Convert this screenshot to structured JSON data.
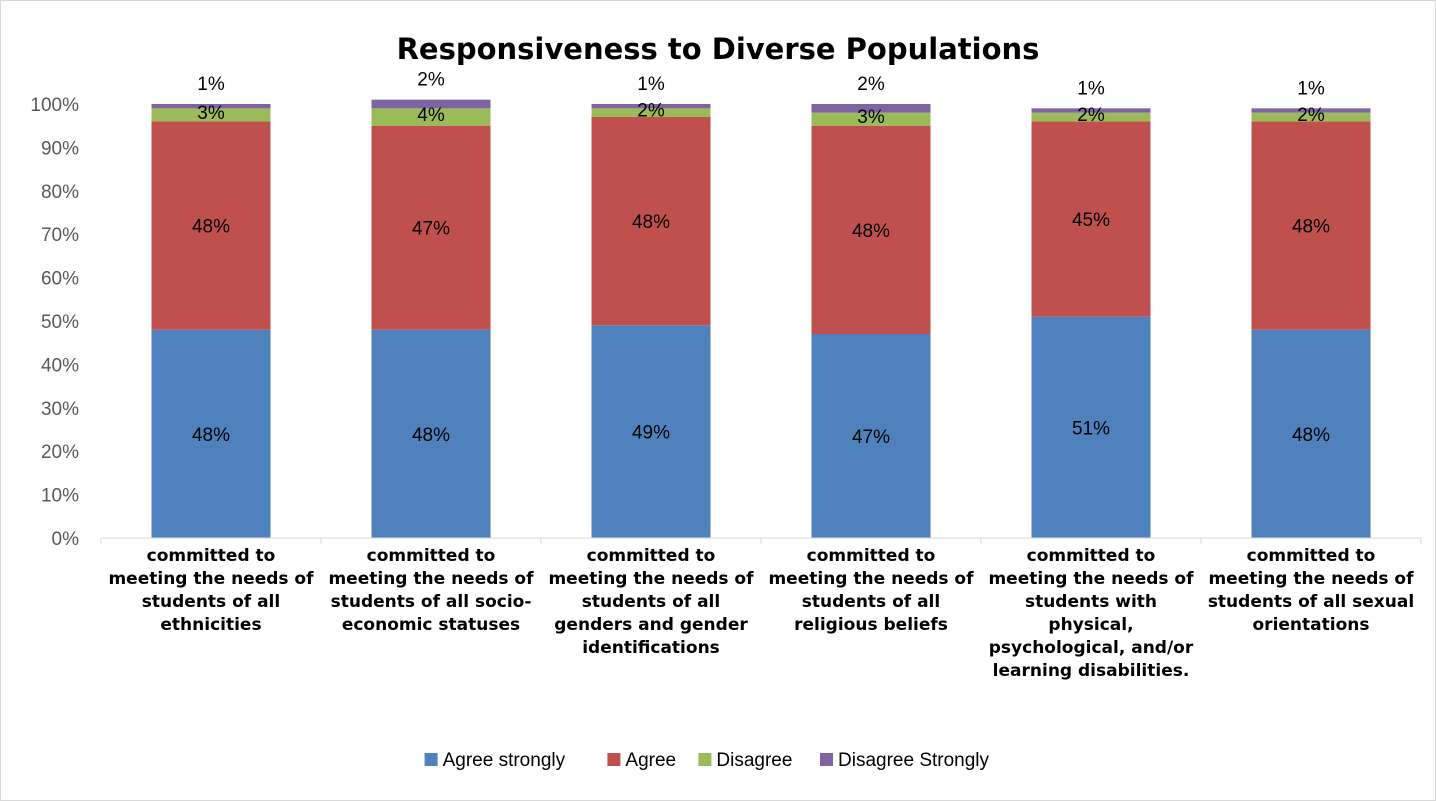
{
  "chart_data": {
    "type": "bar",
    "stacked": true,
    "percent_stacked": true,
    "title": "Responsiveness to Diverse Populations",
    "xlabel": "",
    "ylabel": "",
    "ylim": [
      0,
      100
    ],
    "yticks": [
      "0%",
      "10%",
      "20%",
      "30%",
      "40%",
      "50%",
      "60%",
      "70%",
      "80%",
      "90%",
      "100%"
    ],
    "grid": false,
    "legend_position": "bottom",
    "categories": [
      [
        "committed to",
        "meeting the needs of",
        "students of all",
        "ethnicities"
      ],
      [
        "committed to",
        "meeting the needs of",
        "students of all socio-",
        "economic statuses"
      ],
      [
        "committed to",
        "meeting the needs of",
        "students of all",
        "genders and gender",
        "identifications"
      ],
      [
        "committed to",
        "meeting the needs of",
        "students of all",
        "religious beliefs"
      ],
      [
        "committed to",
        "meeting the needs of",
        "students with",
        "physical,",
        "psychological, and/or",
        "learning disabilities."
      ],
      [
        "committed to",
        "meeting the needs of",
        "students of all sexual",
        "orientations"
      ]
    ],
    "series": [
      {
        "name": "Agree strongly",
        "color": "#4f81bd",
        "values": [
          48,
          48,
          49,
          47,
          51,
          48
        ],
        "labels": [
          "48%",
          "48%",
          "49%",
          "47%",
          "51%",
          "48%"
        ]
      },
      {
        "name": "Agree",
        "color": "#c0504d",
        "values": [
          48,
          47,
          48,
          48,
          45,
          48
        ],
        "labels": [
          "48%",
          "47%",
          "48%",
          "48%",
          "45%",
          "48%"
        ]
      },
      {
        "name": "Disagree",
        "color": "#9bbb59",
        "values": [
          3,
          4,
          2,
          3,
          2,
          2
        ],
        "labels": [
          "3%",
          "4%",
          "2%",
          "3%",
          "2%",
          "2%"
        ]
      },
      {
        "name": "Disagree Strongly",
        "color": "#8064a2",
        "values": [
          1,
          2,
          1,
          2,
          1,
          1
        ],
        "labels": [
          "1%",
          "2%",
          "1%",
          "2%",
          "1%",
          "1%"
        ]
      }
    ]
  }
}
